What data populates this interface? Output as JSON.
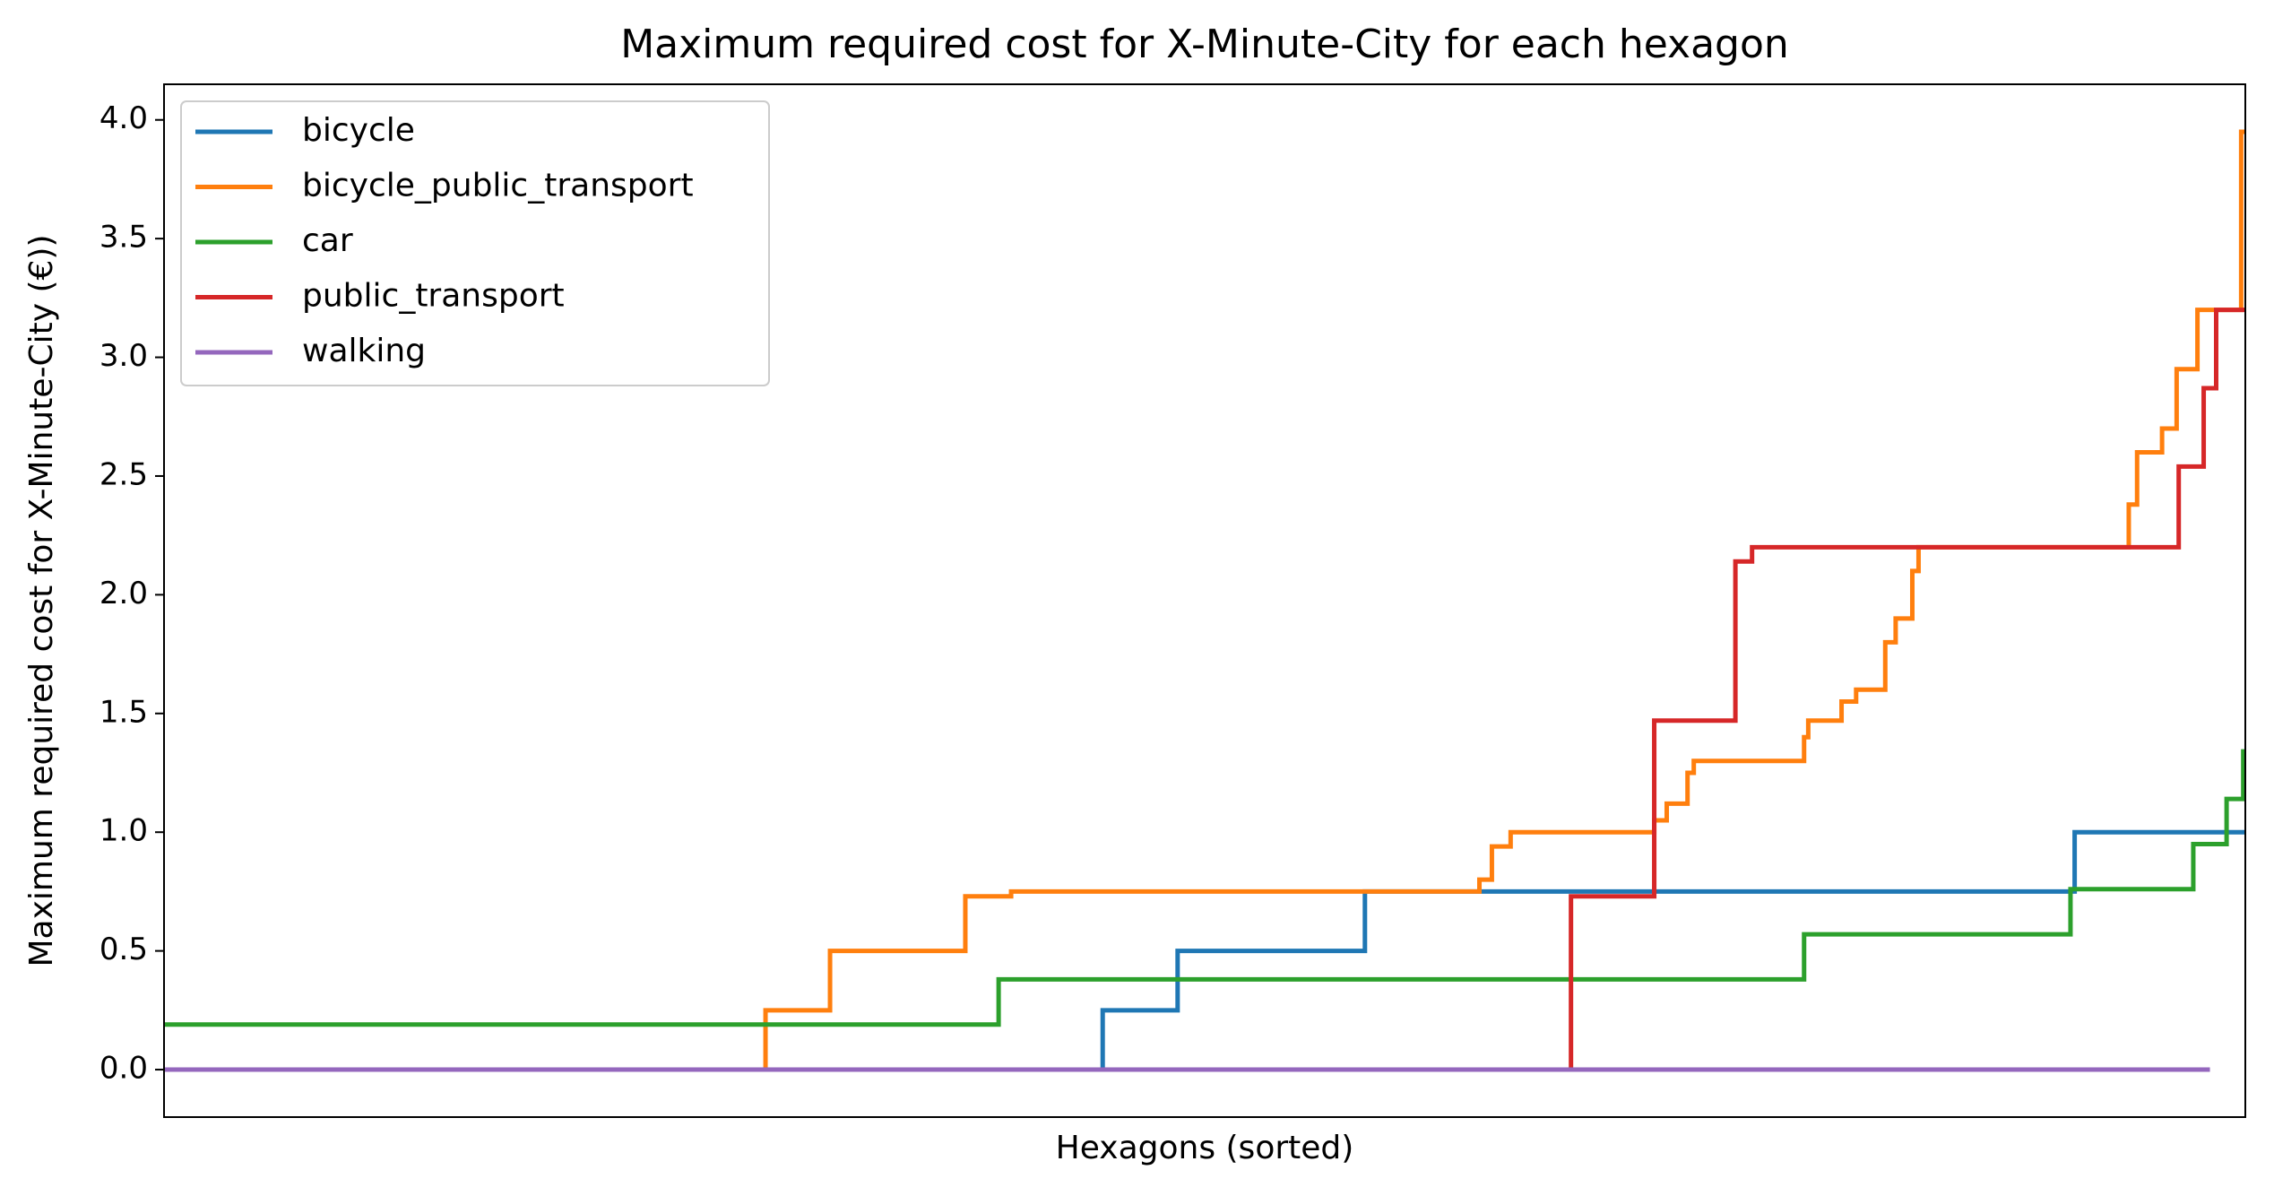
{
  "chart_data": {
    "type": "line",
    "title": "Maximum required cost for X-Minute-City for each hexagon",
    "xlabel": "Hexagons (sorted)",
    "ylabel": "Maximum required cost for X-Minute-City (€))",
    "xlim": [
      0,
      1000
    ],
    "ylim": [
      -0.2,
      4.15
    ],
    "yticks": [
      {
        "value": 0,
        "label": "0.0"
      },
      0.5,
      {
        "value": 1,
        "label": "1.0"
      },
      1.5,
      {
        "value": 2,
        "label": "2.0"
      },
      2.5,
      {
        "value": 3,
        "label": "3.0"
      },
      3.5,
      {
        "value": 4,
        "label": "4.0"
      }
    ],
    "legend": "upper left",
    "series": [
      {
        "name": "bicycle",
        "color": "#1f77b4",
        "x": [
          0,
          451,
          451,
          487,
          487,
          577,
          577,
          918,
          918,
          1000
        ],
        "values": [
          0,
          0,
          0.25,
          0.25,
          0.5,
          0.5,
          0.75,
          0.75,
          1.0,
          1.0
        ]
      },
      {
        "name": "bicycle_public_transport",
        "color": "#ff7f0e",
        "x": [
          289,
          289,
          320,
          320,
          385,
          385,
          407,
          407,
          632,
          632,
          638,
          638,
          647,
          647,
          716,
          716,
          722,
          722,
          732,
          732,
          735,
          735,
          788,
          788,
          790,
          790,
          806,
          806,
          813,
          813,
          827,
          827,
          832,
          832,
          840,
          840,
          843,
          843,
          848,
          848,
          944,
          944,
          948,
          948,
          960,
          960,
          967,
          967,
          977,
          977,
          985,
          985,
          998,
          998,
          1000
        ],
        "values": [
          0,
          0.25,
          0.25,
          0.5,
          0.5,
          0.73,
          0.73,
          0.75,
          0.75,
          0.8,
          0.8,
          0.94,
          0.94,
          1.0,
          1.0,
          1.05,
          1.05,
          1.12,
          1.12,
          1.25,
          1.25,
          1.3,
          1.3,
          1.4,
          1.4,
          1.47,
          1.47,
          1.55,
          1.55,
          1.6,
          1.6,
          1.8,
          1.8,
          1.9,
          1.9,
          2.1,
          2.1,
          2.2,
          2.2,
          2.2,
          2.2,
          2.38,
          2.38,
          2.6,
          2.6,
          2.7,
          2.7,
          2.95,
          2.95,
          3.2,
          3.2,
          3.2,
          3.2,
          3.95,
          3.95
        ]
      },
      {
        "name": "car",
        "color": "#2ca02c",
        "x": [
          0,
          401,
          401,
          788,
          788,
          916,
          916,
          975,
          975,
          991,
          991,
          999,
          999,
          1000
        ],
        "values": [
          0.19,
          0.19,
          0.38,
          0.38,
          0.57,
          0.57,
          0.76,
          0.76,
          0.95,
          0.95,
          1.14,
          1.14,
          1.34,
          1.34
        ]
      },
      {
        "name": "public_transport",
        "color": "#d62728",
        "x": [
          0,
          676,
          676,
          716,
          716,
          755,
          755,
          763,
          763,
          968,
          968,
          980,
          980,
          986,
          986,
          1000
        ],
        "values": [
          0,
          0,
          0.73,
          0.73,
          1.47,
          1.47,
          2.14,
          2.14,
          2.2,
          2.2,
          2.54,
          2.54,
          2.87,
          2.87,
          3.2,
          3.2
        ]
      },
      {
        "name": "walking",
        "color": "#9467bd",
        "x": [
          0,
          983
        ],
        "values": [
          0,
          0
        ]
      }
    ]
  }
}
